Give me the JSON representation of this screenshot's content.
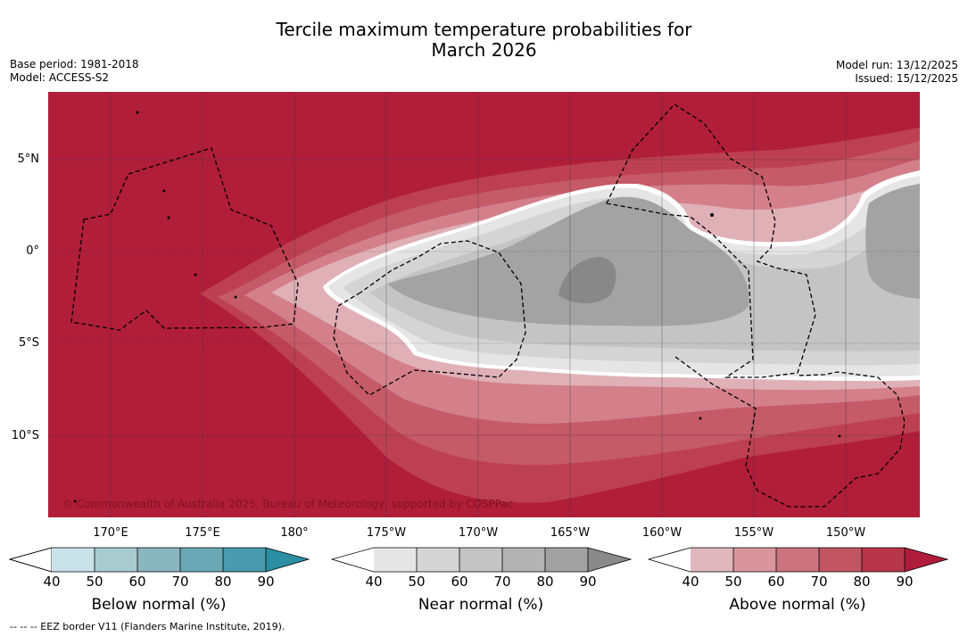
{
  "title": {
    "line1": "Tercile maximum temperature probabilities for",
    "line2": "March 2026"
  },
  "meta": {
    "base_period": "Base period: 1981-2018",
    "model": "Model: ACCESS-S2",
    "model_run": "Model run: 13/12/2025",
    "issued": "Issued: 15/12/2025"
  },
  "map": {
    "lat_labels": [
      "5°N",
      "0°",
      "5°S",
      "10°S"
    ],
    "lon_labels": [
      "170°E",
      "175°E",
      "180°",
      "175°W",
      "170°W",
      "165°W",
      "160°W",
      "155°W",
      "150°W"
    ],
    "copyright": "© Commonwealth of Australia 2025, Bureau of Meteorology, supported by COSPPac"
  },
  "colorbars": [
    {
      "title": "Below normal (%)",
      "ticks": [
        "40",
        "50",
        "60",
        "70",
        "80",
        "90"
      ],
      "colors": [
        "#c9e3e8",
        "#a8cbd0",
        "#8ab6c0",
        "#6aa8b6",
        "#4a9aae",
        "#2c8ea3"
      ]
    },
    {
      "title": "Near normal (%)",
      "ticks": [
        "40",
        "50",
        "60",
        "70",
        "80",
        "90"
      ],
      "colors": [
        "#e6e6e6",
        "#d5d5d5",
        "#c4c4c4",
        "#b3b3b3",
        "#a2a2a2",
        "#8a8a8a"
      ]
    },
    {
      "title": "Above normal (%)",
      "ticks": [
        "40",
        "50",
        "60",
        "70",
        "80",
        "90"
      ],
      "colors": [
        "#e0b7bc",
        "#d8959d",
        "#cb737f",
        "#c25563",
        "#b8354a",
        "#b01c3c"
      ]
    }
  ],
  "footnote": "--  --  -- EEZ border V11 (Flanders Marine Institute, 2019).",
  "colors": {
    "above_dark": "#b11e3a",
    "above_3": "#bd4052",
    "above_2": "#c55a68",
    "above_1": "#d3808b",
    "above_0": "#dfb0b6",
    "near_0": "#e5e5e5",
    "near_1": "#d4d4d4",
    "near_2": "#c4c4c4",
    "near_3": "#a3a3a3",
    "near_4": "#888888"
  }
}
